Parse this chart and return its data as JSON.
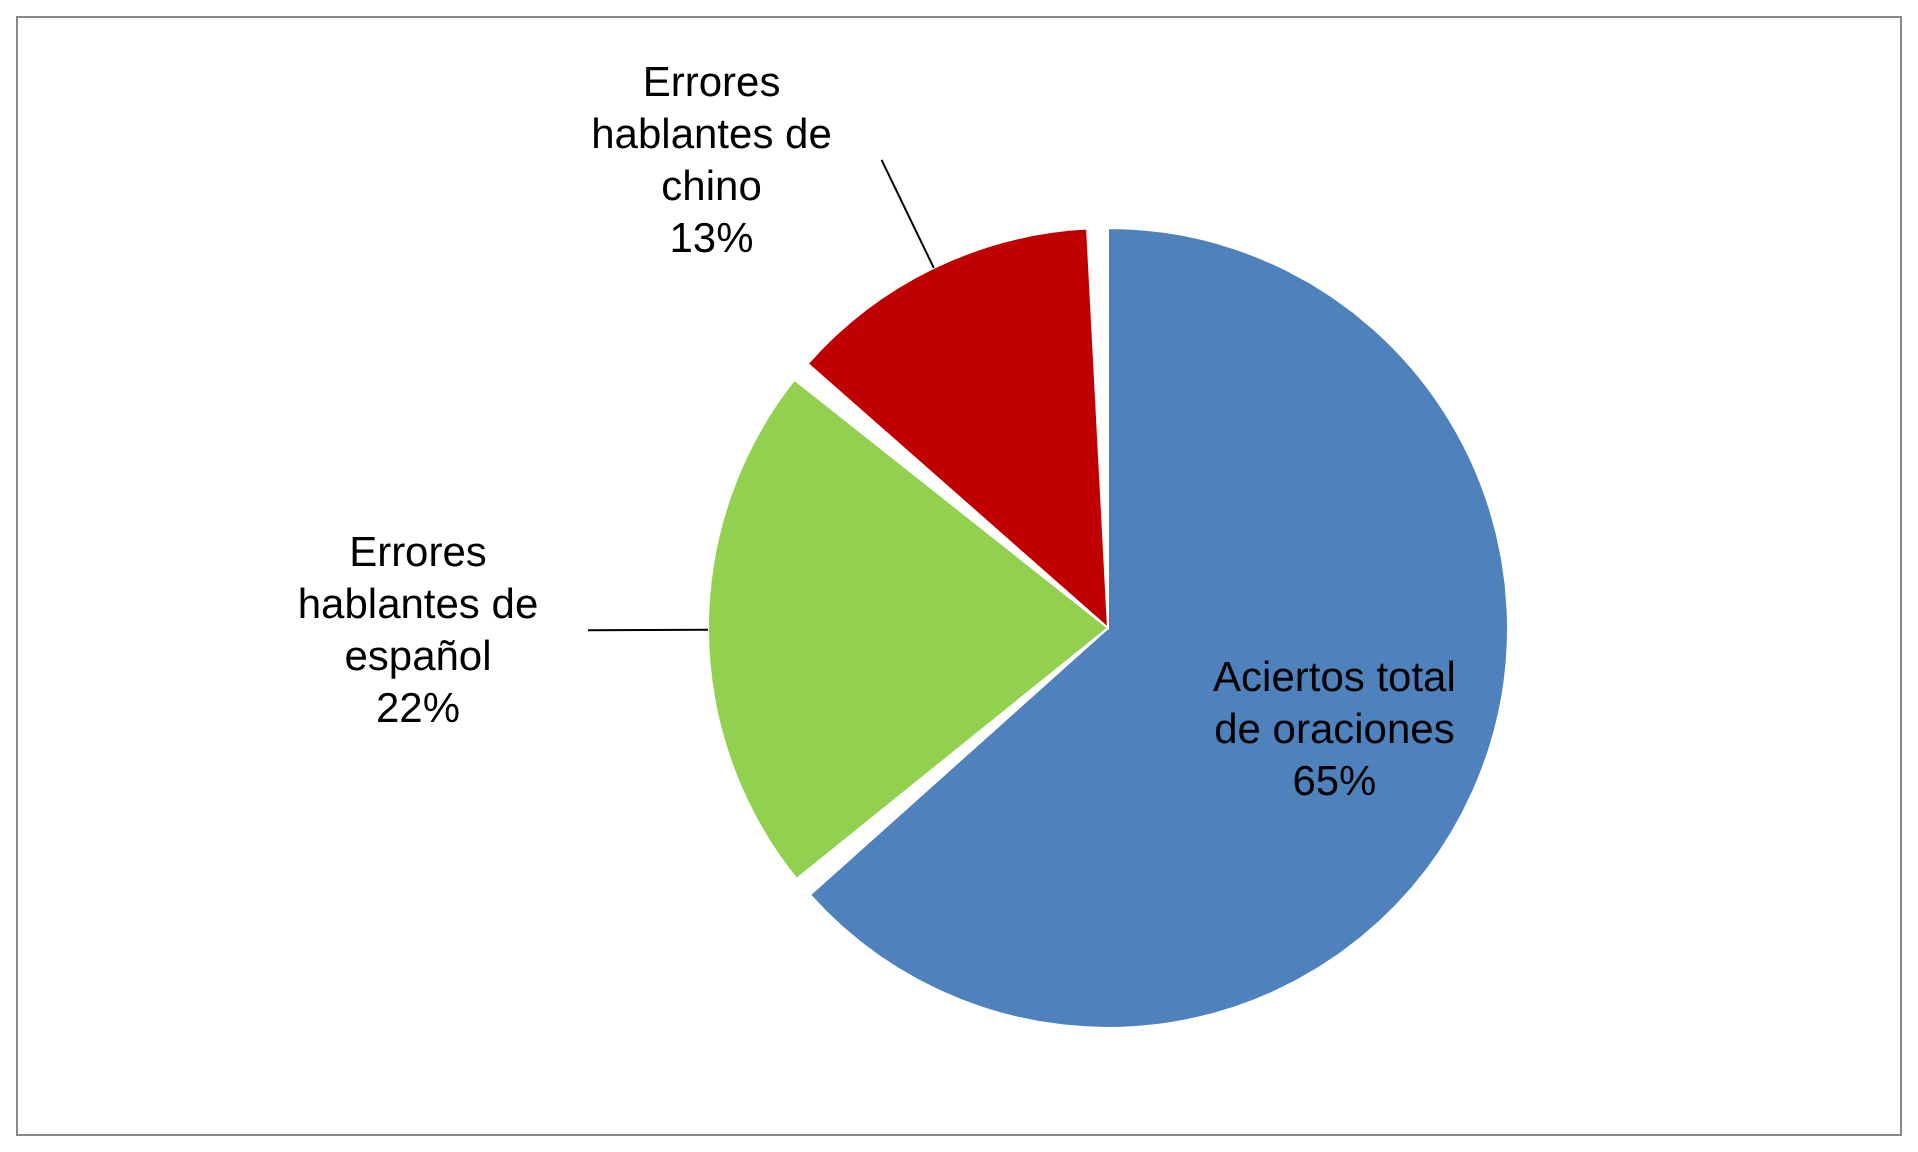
{
  "chart_data": {
    "type": "pie",
    "categories": [
      "Aciertos total de oraciones",
      "Errores hablantes de español",
      "Errores hablantes de chino"
    ],
    "values": [
      65,
      22,
      13
    ],
    "colors": [
      "#4f81bd",
      "#92d050",
      "#c00000"
    ],
    "value_labels": [
      "65%",
      "22%",
      "13%"
    ],
    "legend": false
  }
}
